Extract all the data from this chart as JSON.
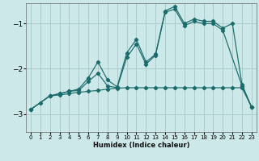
{
  "xlabel": "Humidex (Indice chaleur)",
  "bg_color": "#cce8e8",
  "grid_color": "#aacccc",
  "line_color": "#1a6b6b",
  "xlim": [
    -0.5,
    23.5
  ],
  "ylim": [
    -3.4,
    -0.55
  ],
  "yticks": [
    -3,
    -2,
    -1
  ],
  "xticks": [
    0,
    1,
    2,
    3,
    4,
    5,
    6,
    7,
    8,
    9,
    10,
    11,
    12,
    13,
    14,
    15,
    16,
    17,
    18,
    19,
    20,
    21,
    22,
    23
  ],
  "line1_x": [
    0,
    1,
    2,
    3,
    4,
    5,
    6,
    7,
    8,
    9,
    10,
    11,
    12,
    13,
    14,
    15,
    16,
    17,
    18,
    19,
    20,
    21,
    22,
    23
  ],
  "line1_y": [
    -2.9,
    -2.75,
    -2.6,
    -2.58,
    -2.55,
    -2.52,
    -2.5,
    -2.48,
    -2.45,
    -2.43,
    -2.42,
    -2.42,
    -2.42,
    -2.42,
    -2.42,
    -2.42,
    -2.42,
    -2.42,
    -2.42,
    -2.42,
    -2.42,
    -2.42,
    -2.42,
    -2.85
  ],
  "line2_x": [
    0,
    2,
    3,
    4,
    5,
    6,
    7,
    8,
    9,
    10,
    11,
    12,
    13,
    14,
    15,
    16,
    17,
    18,
    19,
    20,
    22,
    23
  ],
  "line2_y": [
    -2.9,
    -2.6,
    -2.55,
    -2.5,
    -2.48,
    -2.28,
    -2.1,
    -2.38,
    -2.42,
    -1.75,
    -1.45,
    -1.9,
    -1.7,
    -0.75,
    -0.68,
    -1.05,
    -0.95,
    -1.0,
    -1.0,
    -1.15,
    -2.38,
    -2.85
  ],
  "line3_x": [
    0,
    2,
    3,
    4,
    5,
    6,
    7,
    8,
    9,
    10,
    11,
    12,
    13,
    14,
    15,
    16,
    17,
    18,
    19,
    20,
    21,
    22,
    23
  ],
  "line3_y": [
    -2.9,
    -2.6,
    -2.55,
    -2.5,
    -2.45,
    -2.2,
    -1.85,
    -2.25,
    -2.4,
    -1.65,
    -1.35,
    -1.85,
    -1.68,
    -0.72,
    -0.62,
    -1.0,
    -0.9,
    -0.95,
    -0.95,
    -1.1,
    -1.0,
    -2.35,
    -2.85
  ]
}
